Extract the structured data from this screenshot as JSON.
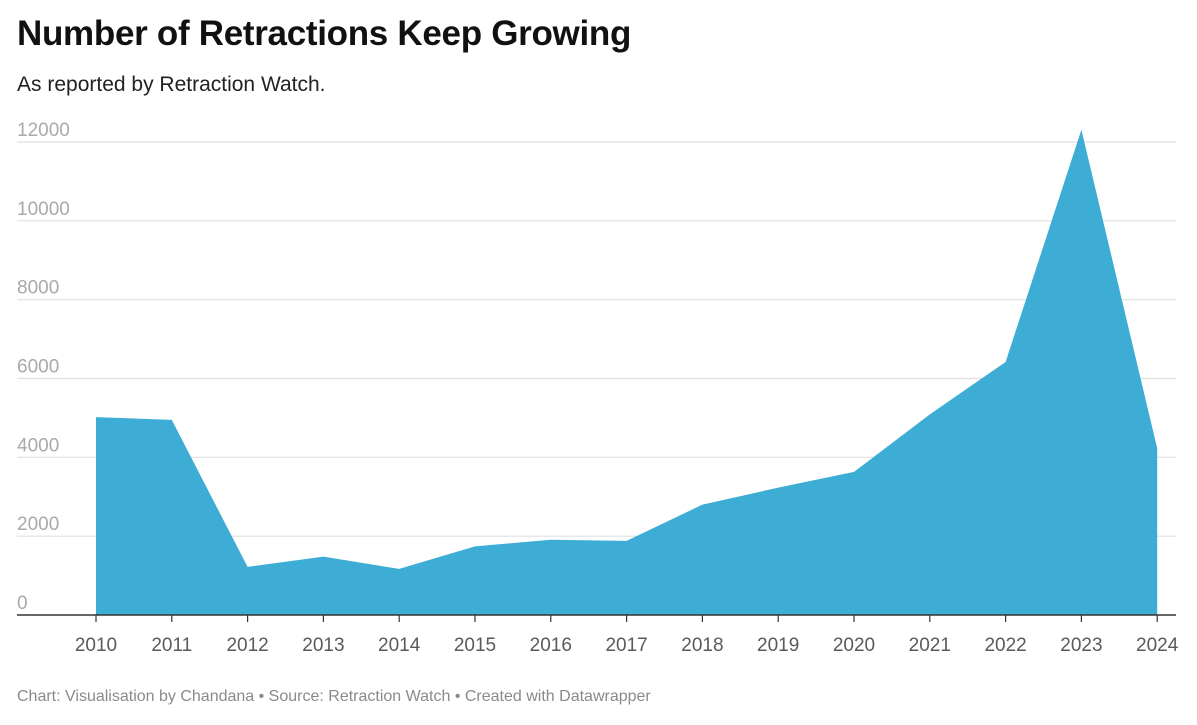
{
  "header": {
    "title": "Number of Retractions Keep Growing",
    "subtitle": "As reported by Retraction Watch."
  },
  "footer": {
    "text": "Chart: Visualisation by Chandana • Source: Retraction Watch • Created with Datawrapper"
  },
  "chart_data": {
    "type": "area",
    "title": "Number of Retractions Keep Growing",
    "subtitle": "As reported by Retraction Watch.",
    "xlabel": "",
    "ylabel": "",
    "x": [
      "2010",
      "2011",
      "2012",
      "2013",
      "2014",
      "2015",
      "2016",
      "2017",
      "2018",
      "2019",
      "2020",
      "2021",
      "2022",
      "2023",
      "2024"
    ],
    "values": [
      5020,
      4950,
      1220,
      1480,
      1170,
      1740,
      1910,
      1880,
      2800,
      3230,
      3630,
      5090,
      6420,
      12310,
      4230
    ],
    "yticks": [
      0,
      2000,
      4000,
      6000,
      8000,
      10000,
      12000
    ],
    "ylim": [
      0,
      12000
    ],
    "grid": true,
    "legend": "none",
    "colors": {
      "area": "#3eadd5",
      "grid": "#e0e0e0",
      "axis": "#333333"
    }
  }
}
